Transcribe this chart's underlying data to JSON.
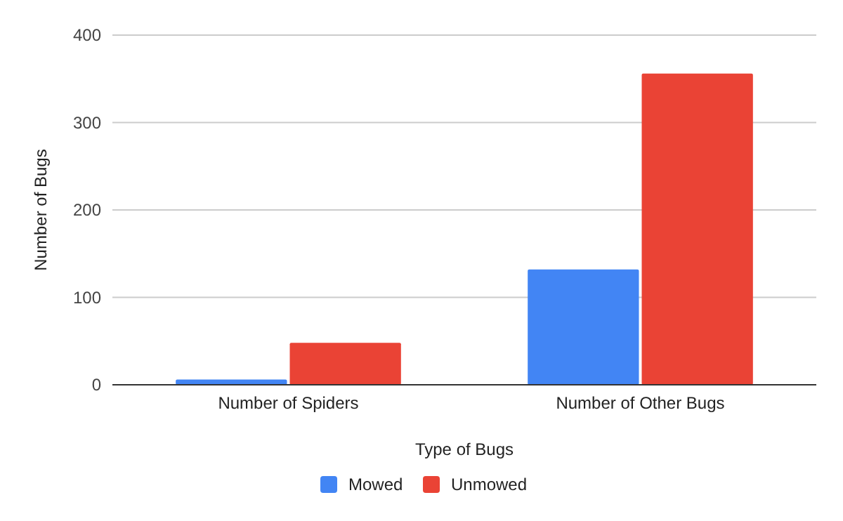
{
  "chart_data": {
    "type": "bar",
    "xlabel": "Type of Bugs",
    "ylabel": "Number of Bugs",
    "categories": [
      "Number of Spiders",
      "Number of Other Bugs"
    ],
    "series": [
      {
        "name": "Mowed",
        "color": "#4285f4",
        "values": [
          6,
          132
        ]
      },
      {
        "name": "Unmowed",
        "color": "#ea4335",
        "values": [
          48,
          356
        ]
      }
    ],
    "ylim": [
      0,
      400
    ],
    "yticks": [
      0,
      100,
      200,
      300,
      400
    ],
    "grid": "y",
    "legend": "bottom"
  }
}
